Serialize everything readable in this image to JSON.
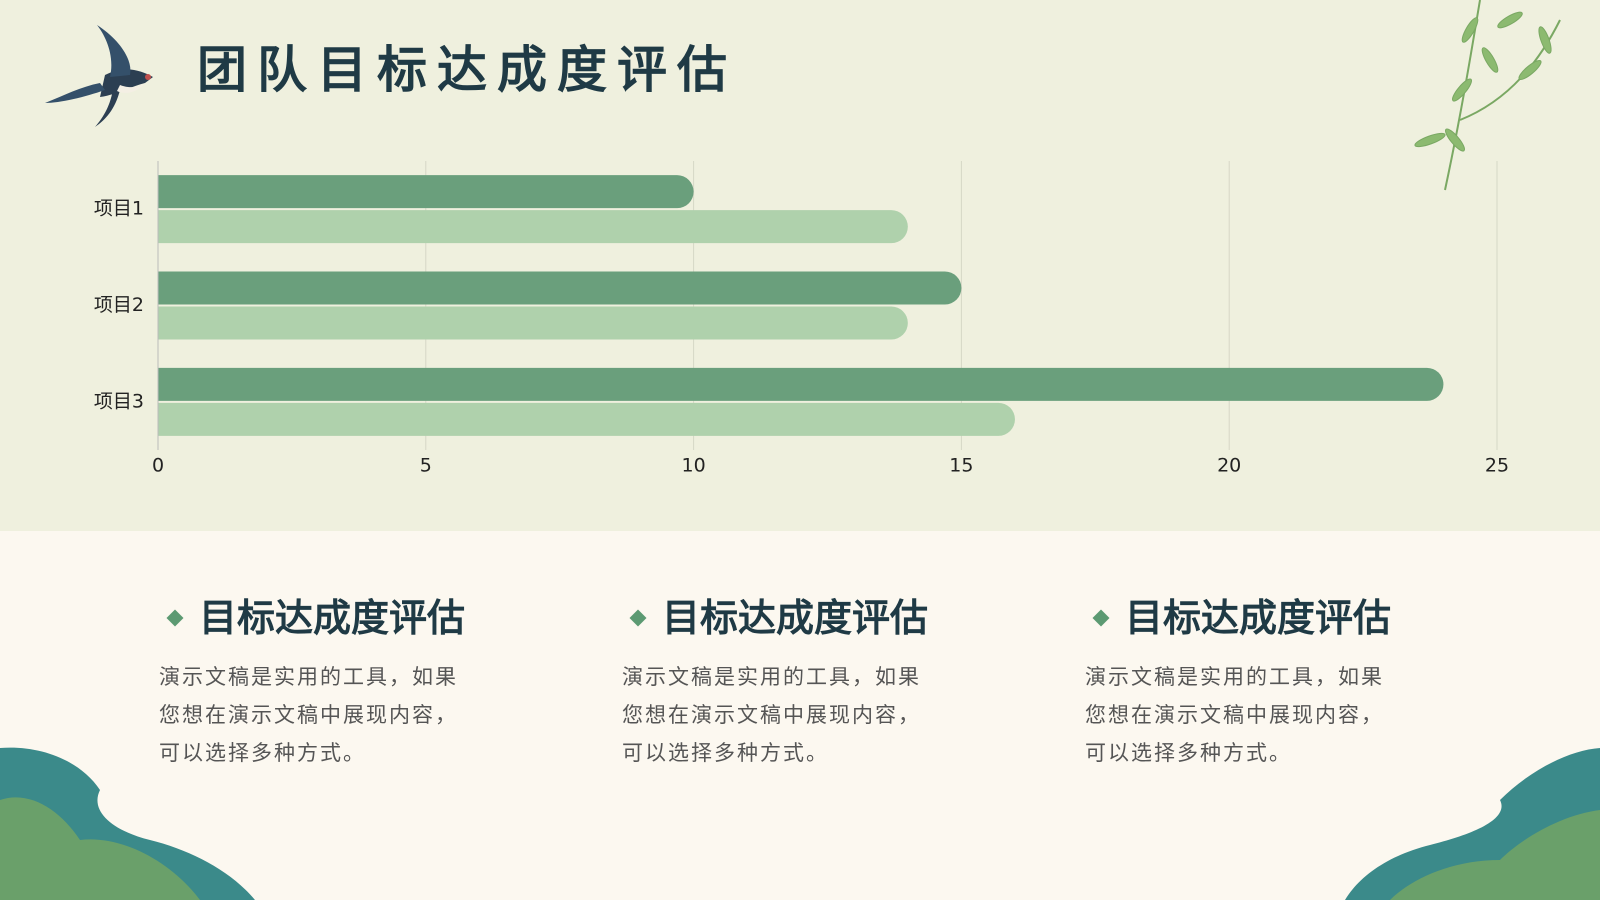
{
  "title": "团队目标达成度评估",
  "chart_data": {
    "type": "bar",
    "orientation": "horizontal",
    "categories": [
      "项目1",
      "项目2",
      "项目3"
    ],
    "series": [
      {
        "color": "#6a9f7c",
        "values": [
          10,
          15,
          24
        ]
      },
      {
        "color": "#afd1ac",
        "values": [
          14,
          14,
          16
        ]
      }
    ],
    "xlim": [
      0,
      25
    ],
    "xticks": [
      0,
      5,
      10,
      15,
      20,
      25
    ],
    "grid": true
  },
  "cards": [
    {
      "heading": "目标达成度评估",
      "lines": [
        "演示文稿是实用的工具，如果",
        "您想在演示文稿中展现内容，",
        "可以选择多种方式。"
      ]
    },
    {
      "heading": "目标达成度评估",
      "lines": [
        "演示文稿是实用的工具，如果",
        "您想在演示文稿中展现内容，",
        "可以选择多种方式。"
      ]
    },
    {
      "heading": "目标达成度评估",
      "lines": [
        "演示文稿是实用的工具，如果",
        "您想在演示文稿中展现内容，",
        "可以选择多种方式。"
      ]
    }
  ]
}
